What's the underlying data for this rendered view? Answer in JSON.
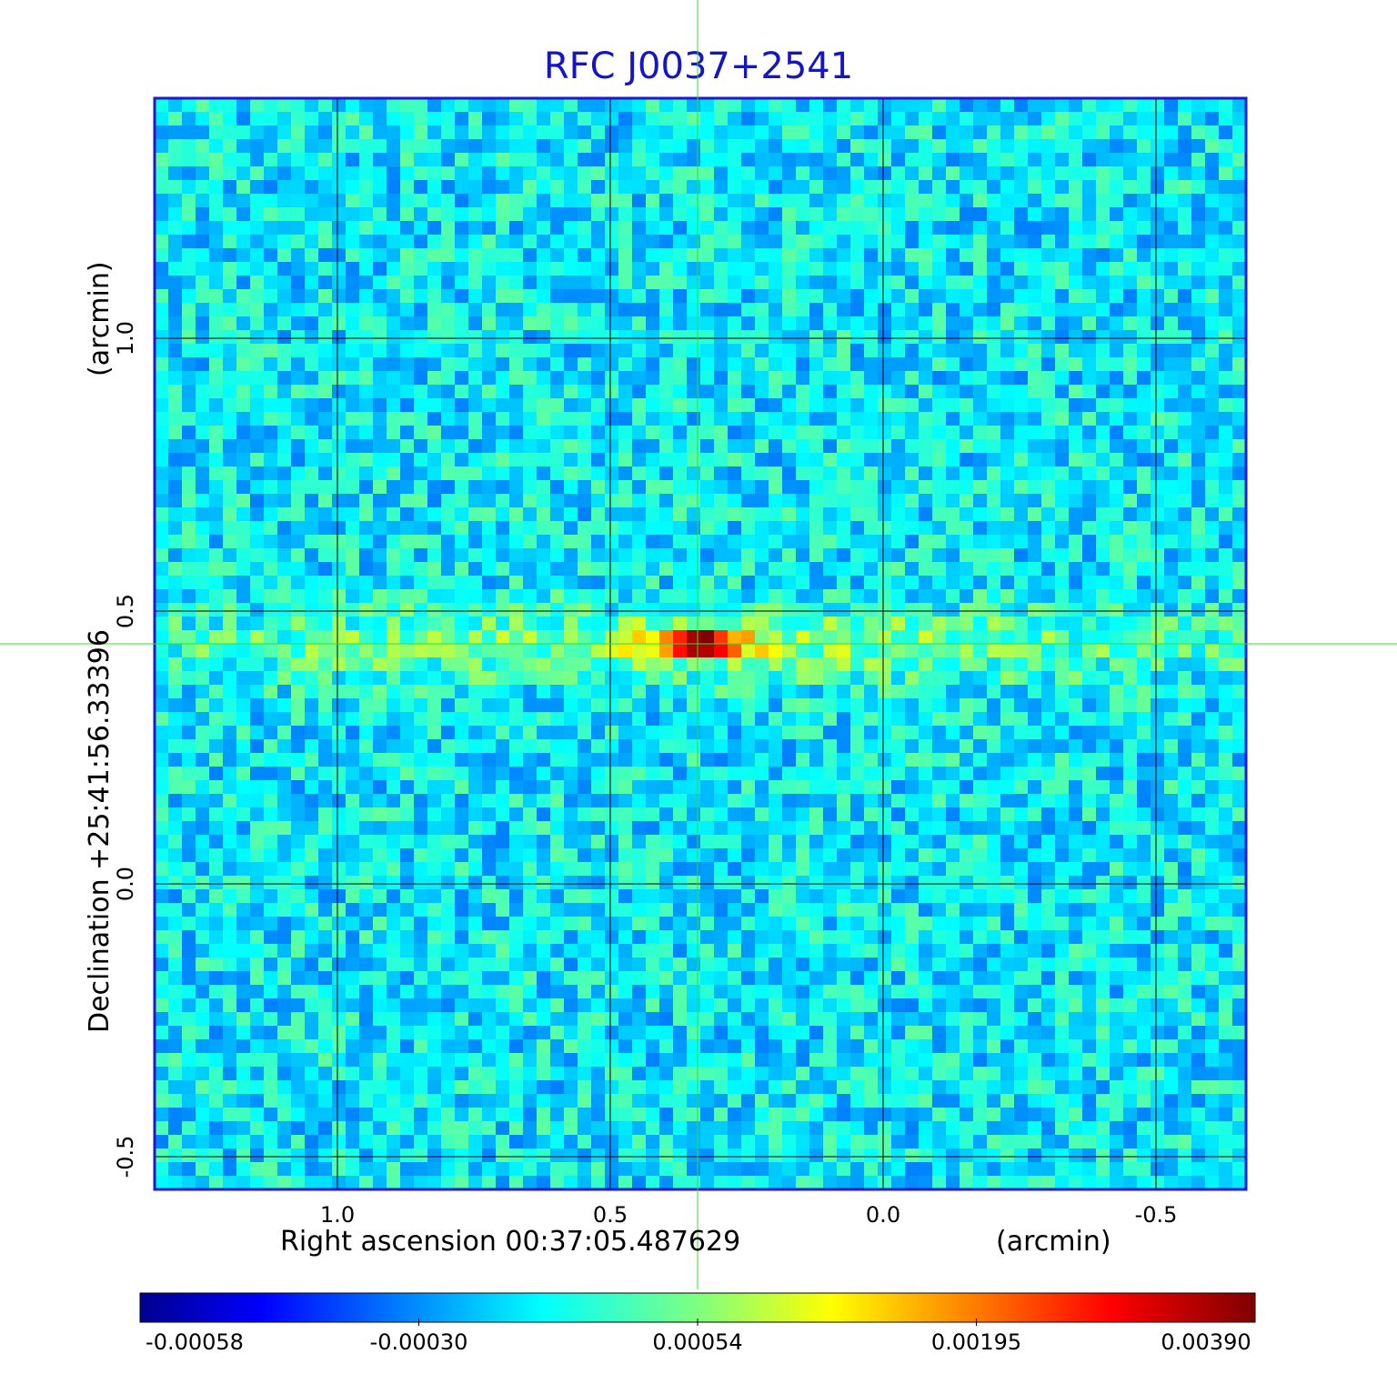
{
  "chart_data": {
    "type": "heatmap",
    "title": "RFC J0037+2541",
    "xlabel": "Right ascension  00:37:05.487629",
    "xlabel_units": "(arcmin)",
    "ylabel": "Declination  +25:41:56.33396",
    "ylabel_units": "(arcmin)",
    "x_ticks": [
      "1.0",
      "0.5",
      "0.0",
      "-0.5"
    ],
    "x_tick_values": [
      1.0,
      0.5,
      0.0,
      -0.5
    ],
    "y_ticks": [
      "1.0",
      "0.5",
      "0.0",
      "-0.5"
    ],
    "y_tick_values": [
      1.0,
      0.5,
      0.0,
      -0.5
    ],
    "xlim": [
      1.335,
      -0.665
    ],
    "ylim": [
      -0.56,
      1.44
    ],
    "grid": true,
    "crosshair": {
      "x": 0.34,
      "y": 0.44,
      "color": "#33dd33"
    },
    "source": {
      "x": 0.34,
      "y": 0.44,
      "peak": 0.0039,
      "extent_x": 0.35,
      "extent_y": 0.04
    },
    "colorbar": {
      "tick_labels": [
        "-0.00058",
        "-0.00030",
        "0.00054",
        "0.00195",
        "0.00390"
      ],
      "tick_values": [
        -0.00058,
        -0.0003,
        0.00054,
        0.00195,
        0.0039
      ],
      "colormap": "jet"
    },
    "colors": {
      "title": "#1515c8",
      "frame": "#1a1ad0",
      "grid": "#000000",
      "crosshair": "#33dd33",
      "background_noise": "#33ddee"
    }
  }
}
